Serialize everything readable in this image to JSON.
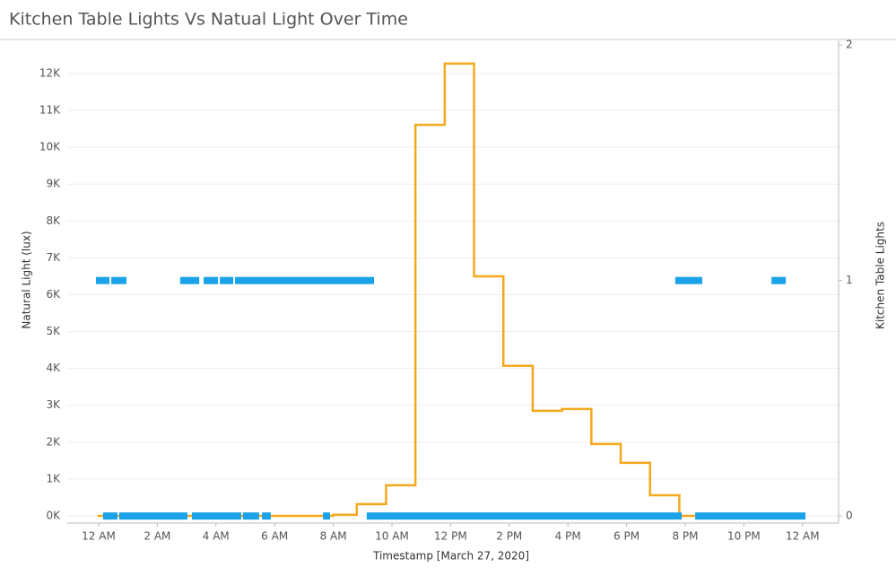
{
  "chart_data": {
    "type": "step-line-with-state-bars",
    "title": "Kitchen Table Lights Vs Natual Light Over Time",
    "x_label": "Timestamp [March 27, 2020]",
    "y_label": "Natural Light (lux)",
    "y2_label": "Kitchen Table Lights",
    "xlim": [
      -1.07,
      25.23
    ],
    "xticks": [
      {
        "value": 0,
        "label": "12 AM"
      },
      {
        "value": 2,
        "label": "2 AM"
      },
      {
        "value": 4,
        "label": "4 AM"
      },
      {
        "value": 6,
        "label": "6 AM"
      },
      {
        "value": 8,
        "label": "8 AM"
      },
      {
        "value": 10,
        "label": "10 AM"
      },
      {
        "value": 12,
        "label": "12 PM"
      },
      {
        "value": 14,
        "label": "2 PM"
      },
      {
        "value": 16,
        "label": "4 PM"
      },
      {
        "value": 18,
        "label": "6 PM"
      },
      {
        "value": 20,
        "label": "8 PM"
      },
      {
        "value": 22,
        "label": "10 PM"
      },
      {
        "value": 24,
        "label": "12 AM"
      }
    ],
    "ylim": [
      -195,
      12900
    ],
    "yticks": [
      {
        "value": 0,
        "label": "0K"
      },
      {
        "value": 1000,
        "label": "1K"
      },
      {
        "value": 2000,
        "label": "2K"
      },
      {
        "value": 3000,
        "label": "3K"
      },
      {
        "value": 4000,
        "label": "4K"
      },
      {
        "value": 5000,
        "label": "5K"
      },
      {
        "value": 6000,
        "label": "6K"
      },
      {
        "value": 7000,
        "label": "7K"
      },
      {
        "value": 8000,
        "label": "8K"
      },
      {
        "value": 9000,
        "label": "9K"
      },
      {
        "value": 10000,
        "label": "10K"
      },
      {
        "value": 11000,
        "label": "11K"
      },
      {
        "value": 12000,
        "label": "12K"
      }
    ],
    "y2lim": [
      -0.03,
      2.02
    ],
    "y2ticks": [
      0,
      1,
      2
    ],
    "grid": true,
    "series": [
      {
        "name": "Natural Light (lux)",
        "color": "#f4a81d",
        "x": [
          0,
          8,
          8.8,
          9.8,
          10.8,
          11.8,
          12.8,
          13.8,
          14.8,
          15.8,
          16.8,
          17.8,
          18.8,
          19.8
        ],
        "step_end": 20.3,
        "values": [
          0,
          30,
          320,
          830,
          10610,
          12270,
          6500,
          4070,
          2850,
          2900,
          1950,
          1440,
          560,
          0
        ]
      },
      {
        "name": "Kitchen Table Lights",
        "color": "#1aa3e8",
        "axis": "y2",
        "segments": [
          {
            "start": -0.09,
            "end": 0.37,
            "value": 1
          },
          {
            "start": 0.43,
            "end": 0.95,
            "value": 1
          },
          {
            "start": 2.78,
            "end": 3.43,
            "value": 1
          },
          {
            "start": 3.58,
            "end": 4.07,
            "value": 1
          },
          {
            "start": 4.13,
            "end": 4.59,
            "value": 1
          },
          {
            "start": 4.65,
            "end": 9.39,
            "value": 1
          },
          {
            "start": 19.66,
            "end": 20.58,
            "value": 1
          },
          {
            "start": 22.94,
            "end": 23.43,
            "value": 1
          },
          {
            "start": 0.15,
            "end": 0.64,
            "value": 0
          },
          {
            "start": 0.7,
            "end": 3.03,
            "value": 0
          },
          {
            "start": 3.18,
            "end": 4.86,
            "value": 0
          },
          {
            "start": 4.92,
            "end": 5.47,
            "value": 0
          },
          {
            "start": 5.57,
            "end": 5.87,
            "value": 0
          },
          {
            "start": 7.65,
            "end": 7.89,
            "value": 0
          },
          {
            "start": 9.14,
            "end": 19.88,
            "value": 0
          },
          {
            "start": 20.34,
            "end": 24.1,
            "value": 0
          }
        ]
      }
    ]
  }
}
